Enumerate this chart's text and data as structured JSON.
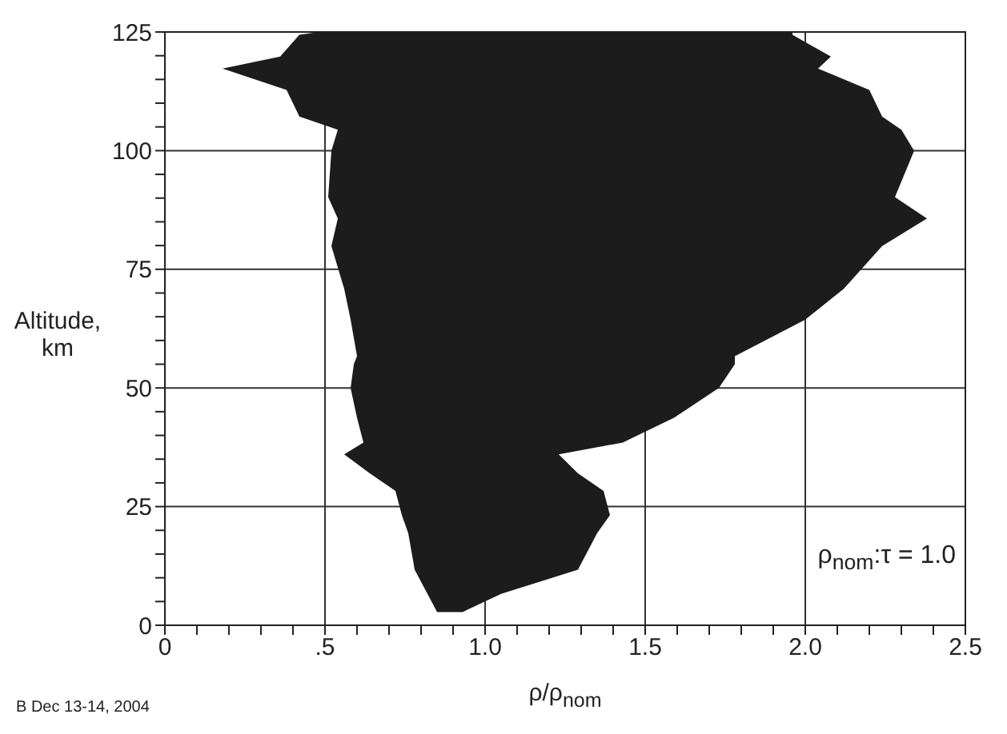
{
  "chart_data": {
    "type": "area",
    "orientation": "horizontal",
    "xlabel": "ρ/ρ$_{nom}$",
    "ylabel": "Altitude, km",
    "annotations": [
      "ρ$_{nom}$:τ = 1.0",
      "B Dec 13-14, 2004"
    ],
    "x": [
      2.8,
      6.6,
      11.7,
      19.4,
      23.2,
      28.3,
      32,
      36,
      38.5,
      43.7,
      50,
      55,
      56.7,
      64.4,
      70.9,
      79.9,
      85.7,
      90.2,
      100,
      104.4,
      107.2,
      112.8,
      117.3,
      119.8,
      124.4,
      125
    ],
    "series": [
      {
        "color": "#1c1c1c",
        "lower": [
          0.85,
          0.82,
          0.78,
          0.76,
          0.74,
          0.72,
          0.64,
          0.56,
          0.62,
          0.6,
          0.58,
          0.59,
          0.6,
          0.58,
          0.56,
          0.52,
          0.54,
          0.51,
          0.52,
          0.54,
          0.42,
          0.38,
          0.18,
          0.36,
          0.42,
          0.48
        ],
        "values": [
          null,
          null,
          null,
          null,
          null,
          null,
          null,
          null,
          null,
          null,
          null,
          null,
          null,
          null,
          null,
          null,
          null,
          null,
          null,
          null,
          null,
          null,
          null,
          null,
          null,
          null
        ],
        "upper": [
          0.93,
          1.05,
          1.29,
          1.35,
          1.39,
          1.37,
          1.29,
          1.23,
          1.43,
          1.59,
          1.73,
          1.78,
          1.78,
          2.0,
          2.12,
          2.24,
          2.38,
          2.28,
          2.34,
          2.3,
          2.24,
          2.2,
          2.04,
          2.08,
          1.96,
          1.96
        ]
      }
    ],
    "xlim": [
      0,
      2.5
    ],
    "ylim": [
      0,
      125
    ],
    "xticks": [
      0,
      {
        "value": 0.1,
        "label": null
      },
      {
        "value": 0.2,
        "label": null
      },
      {
        "value": 0.3,
        "label": null
      },
      {
        "value": 0.4,
        "label": null
      },
      {
        "value": 0.5,
        "label": ".5"
      },
      {
        "value": 0.6,
        "label": null
      },
      {
        "value": 0.7,
        "label": null
      },
      {
        "value": 0.8,
        "label": null
      },
      {
        "value": 0.9,
        "label": null
      },
      {
        "value": 1,
        "label": "1.0"
      },
      {
        "value": 1.1,
        "label": null
      },
      {
        "value": 1.2,
        "label": null
      },
      {
        "value": 1.3,
        "label": null
      },
      {
        "value": 1.4,
        "label": null
      },
      {
        "value": 1.5,
        "label": "1.5"
      },
      {
        "value": 1.6,
        "label": null
      },
      {
        "value": 1.7,
        "label": null
      },
      {
        "value": 1.8,
        "label": null
      },
      {
        "value": 1.9,
        "label": null
      },
      {
        "value": 2,
        "label": "2.0"
      },
      {
        "value": 2.1,
        "label": null
      },
      {
        "value": 2.2,
        "label": null
      },
      {
        "value": 2.3,
        "label": null
      },
      {
        "value": 2.4,
        "label": null
      },
      2.5
    ],
    "yticks": [
      0,
      {
        "value": 5,
        "label": null
      },
      {
        "value": 10,
        "label": null
      },
      {
        "value": 15,
        "label": null
      },
      {
        "value": 20,
        "label": null
      },
      25,
      {
        "value": 30,
        "label": null
      },
      {
        "value": 35,
        "label": null
      },
      {
        "value": 40,
        "label": null
      },
      {
        "value": 45,
        "label": null
      },
      50,
      {
        "value": 55,
        "label": null
      },
      {
        "value": 60,
        "label": null
      },
      {
        "value": 65,
        "label": null
      },
      {
        "value": 70,
        "label": null
      },
      75,
      {
        "value": 80,
        "label": null
      },
      {
        "value": 85,
        "label": null
      },
      {
        "value": 90,
        "label": null
      },
      {
        "value": 95,
        "label": null
      },
      100,
      {
        "value": 105,
        "label": null
      },
      {
        "value": 110,
        "label": null
      },
      {
        "value": 115,
        "label": null
      },
      {
        "value": 120,
        "label": null
      },
      125
    ],
    "grid": true
  }
}
